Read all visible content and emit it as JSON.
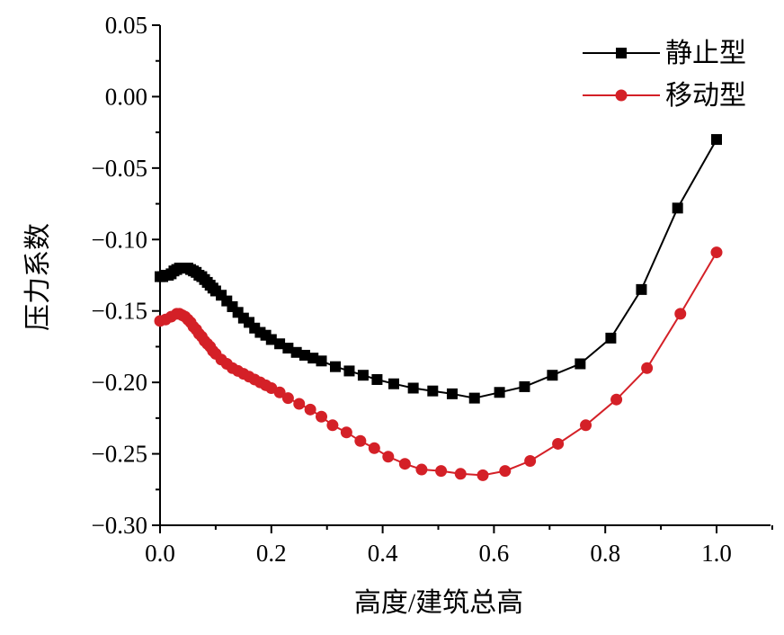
{
  "chart_data": {
    "type": "line",
    "xlabel": "高度/建筑总高",
    "ylabel": "压力系数",
    "xlim": [
      0.0,
      1.0
    ],
    "ylim": [
      -0.3,
      0.05
    ],
    "x_ticks": [
      "0.0",
      "0.2",
      "0.4",
      "0.6",
      "0.8",
      "1.0"
    ],
    "x_tick_values": [
      0.0,
      0.2,
      0.4,
      0.6,
      0.8,
      1.0
    ],
    "y_ticks": [
      "0.05",
      "0.00",
      "−0.05",
      "−0.10",
      "−0.15",
      "−0.20",
      "−0.25",
      "−0.30"
    ],
    "y_tick_values": [
      0.05,
      0.0,
      -0.05,
      -0.1,
      -0.15,
      -0.2,
      -0.25,
      -0.3
    ],
    "grid": false,
    "legend_position": "top-right",
    "series": [
      {
        "name": "静止型",
        "color": "#000000",
        "marker": "square",
        "x": [
          0.0,
          0.005,
          0.01,
          0.015,
          0.02,
          0.025,
          0.03,
          0.035,
          0.04,
          0.045,
          0.05,
          0.055,
          0.06,
          0.065,
          0.07,
          0.075,
          0.08,
          0.085,
          0.09,
          0.095,
          0.1,
          0.11,
          0.12,
          0.13,
          0.14,
          0.15,
          0.16,
          0.17,
          0.18,
          0.19,
          0.2,
          0.215,
          0.23,
          0.245,
          0.26,
          0.275,
          0.29,
          0.315,
          0.34,
          0.365,
          0.39,
          0.42,
          0.455,
          0.49,
          0.525,
          0.565,
          0.61,
          0.655,
          0.705,
          0.755,
          0.81,
          0.865,
          0.93,
          1.0
        ],
        "y": [
          -0.126,
          -0.126,
          -0.125,
          -0.125,
          -0.124,
          -0.122,
          -0.121,
          -0.12,
          -0.12,
          -0.12,
          -0.12,
          -0.121,
          -0.122,
          -0.123,
          -0.125,
          -0.126,
          -0.128,
          -0.13,
          -0.132,
          -0.134,
          -0.136,
          -0.139,
          -0.143,
          -0.147,
          -0.151,
          -0.155,
          -0.158,
          -0.162,
          -0.165,
          -0.167,
          -0.17,
          -0.173,
          -0.176,
          -0.179,
          -0.181,
          -0.183,
          -0.185,
          -0.189,
          -0.192,
          -0.195,
          -0.198,
          -0.201,
          -0.204,
          -0.206,
          -0.208,
          -0.211,
          -0.207,
          -0.203,
          -0.195,
          -0.187,
          -0.169,
          -0.135,
          -0.078,
          -0.03
        ]
      },
      {
        "name": "移动型",
        "color": "#d42027",
        "marker": "circle",
        "x": [
          0.0,
          0.01,
          0.02,
          0.03,
          0.035,
          0.04,
          0.045,
          0.05,
          0.055,
          0.06,
          0.065,
          0.07,
          0.075,
          0.08,
          0.085,
          0.09,
          0.095,
          0.1,
          0.11,
          0.12,
          0.13,
          0.14,
          0.15,
          0.16,
          0.17,
          0.18,
          0.19,
          0.2,
          0.215,
          0.23,
          0.25,
          0.27,
          0.29,
          0.31,
          0.335,
          0.36,
          0.385,
          0.41,
          0.44,
          0.47,
          0.505,
          0.54,
          0.58,
          0.62,
          0.665,
          0.715,
          0.765,
          0.82,
          0.875,
          0.935,
          1.0
        ],
        "y": [
          -0.157,
          -0.156,
          -0.154,
          -0.152,
          -0.152,
          -0.153,
          -0.154,
          -0.156,
          -0.158,
          -0.161,
          -0.163,
          -0.166,
          -0.168,
          -0.171,
          -0.173,
          -0.175,
          -0.178,
          -0.18,
          -0.184,
          -0.187,
          -0.19,
          -0.192,
          -0.194,
          -0.196,
          -0.198,
          -0.2,
          -0.202,
          -0.204,
          -0.207,
          -0.211,
          -0.215,
          -0.219,
          -0.224,
          -0.23,
          -0.235,
          -0.241,
          -0.246,
          -0.252,
          -0.257,
          -0.261,
          -0.262,
          -0.264,
          -0.265,
          -0.262,
          -0.255,
          -0.243,
          -0.23,
          -0.212,
          -0.19,
          -0.152,
          -0.109
        ]
      }
    ]
  }
}
